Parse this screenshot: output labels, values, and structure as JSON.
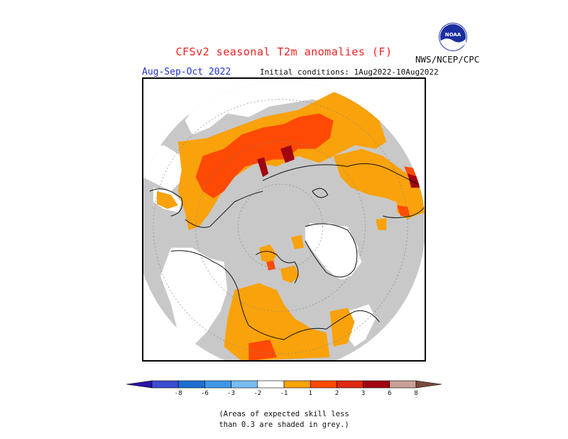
{
  "title": "CFSv2 seasonal T2m anomalies (F)",
  "season": "Aug-Sep-Oct 2022",
  "initial_conditions": "Initial conditions: 1Aug2022-10Aug2022",
  "agency": "NWS/NCEP/CPC",
  "logo_text": "NOAA",
  "legend": {
    "ticks": [
      "-8",
      "-6",
      "-3",
      "-2",
      "-1",
      "1",
      "2",
      "3",
      "6",
      "8"
    ],
    "colors": [
      "#2a13a8",
      "#3c4ccf",
      "#1d6fd0",
      "#3f97e8",
      "#78bdf5",
      "#ffffff",
      "#f9a20b",
      "#fe4a05",
      "#e02812",
      "#a00510",
      "#c9a097",
      "#7a4a3f"
    ]
  },
  "note": {
    "line1": "(Areas of expected skill less",
    "line2": "than 0.3 are shaded in grey.)"
  },
  "map_colors": {
    "no_skill_grey": "#c8c8c8",
    "near_normal_white": "#ffffff",
    "anom_1_2": "#f9a20b",
    "anom_2_3": "#fe4a05",
    "anom_3_6": "#a00510"
  }
}
